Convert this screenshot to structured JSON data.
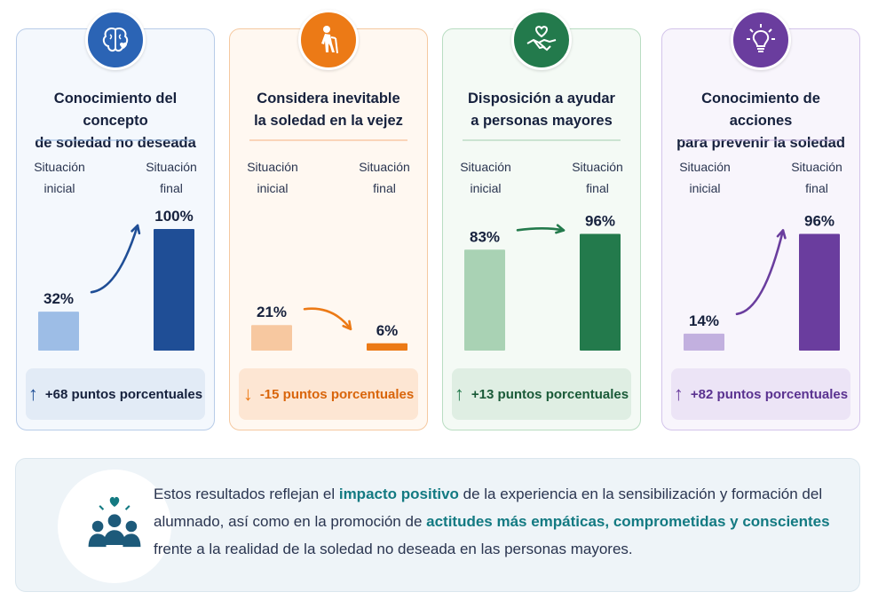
{
  "colors": {
    "blue": "#1f4e96",
    "blue_light": "#9dbde6",
    "orange": "#ec7a16",
    "orange_light": "#f7c8a0",
    "green": "#237a4c",
    "green_light": "#a9d2b4",
    "purple": "#6a3d9e",
    "purple_light": "#c2b0df",
    "teal": "#137a82"
  },
  "labels": {
    "initial": "Situación\ninicial",
    "final": "Situación\nfinal"
  },
  "chart_data": [
    {
      "type": "bar",
      "title": "Conocimiento del concepto\nde soledad no deseada",
      "icon": "brain-heart-icon",
      "categories": [
        "Situación inicial",
        "Situación final"
      ],
      "values": [
        32,
        100
      ],
      "value_labels": [
        "32%",
        "100%"
      ],
      "trend": "up",
      "change_label": "+68 puntos porcentuales"
    },
    {
      "type": "bar",
      "title": "Considera inevitable\nla soledad en la vejez",
      "icon": "elderly-person-icon",
      "categories": [
        "Situación inicial",
        "Situación final"
      ],
      "values": [
        21,
        6
      ],
      "value_labels": [
        "21%",
        "6%"
      ],
      "trend": "down",
      "change_label": "-15 puntos porcentuales"
    },
    {
      "type": "bar",
      "title": "Disposición a ayudar\na personas mayores",
      "icon": "handshake-heart-icon",
      "categories": [
        "Situación inicial",
        "Situación final"
      ],
      "values": [
        83,
        96
      ],
      "value_labels": [
        "83%",
        "96%"
      ],
      "trend": "up",
      "change_label": "+13 puntos porcentuales"
    },
    {
      "type": "bar",
      "title": "Conocimiento de acciones\npara prevenir la soledad",
      "icon": "lightbulb-icon",
      "categories": [
        "Situación inicial",
        "Situación final"
      ],
      "values": [
        14,
        96
      ],
      "value_labels": [
        "14%",
        "96%"
      ],
      "trend": "up",
      "change_label": "+82 puntos porcentuales"
    }
  ],
  "summary": {
    "icon": "people-heart-icon",
    "t1": "Estos resultados reflejan el ",
    "h1": "impacto positivo",
    "t2": " de la experiencia en la sensibilización y formación del alumnado, así como en la promoción de ",
    "h2": "actitudes más empáticas, comprometidas y conscientes",
    "t3": " frente a la realidad de la soledad no deseada en las personas mayores."
  }
}
